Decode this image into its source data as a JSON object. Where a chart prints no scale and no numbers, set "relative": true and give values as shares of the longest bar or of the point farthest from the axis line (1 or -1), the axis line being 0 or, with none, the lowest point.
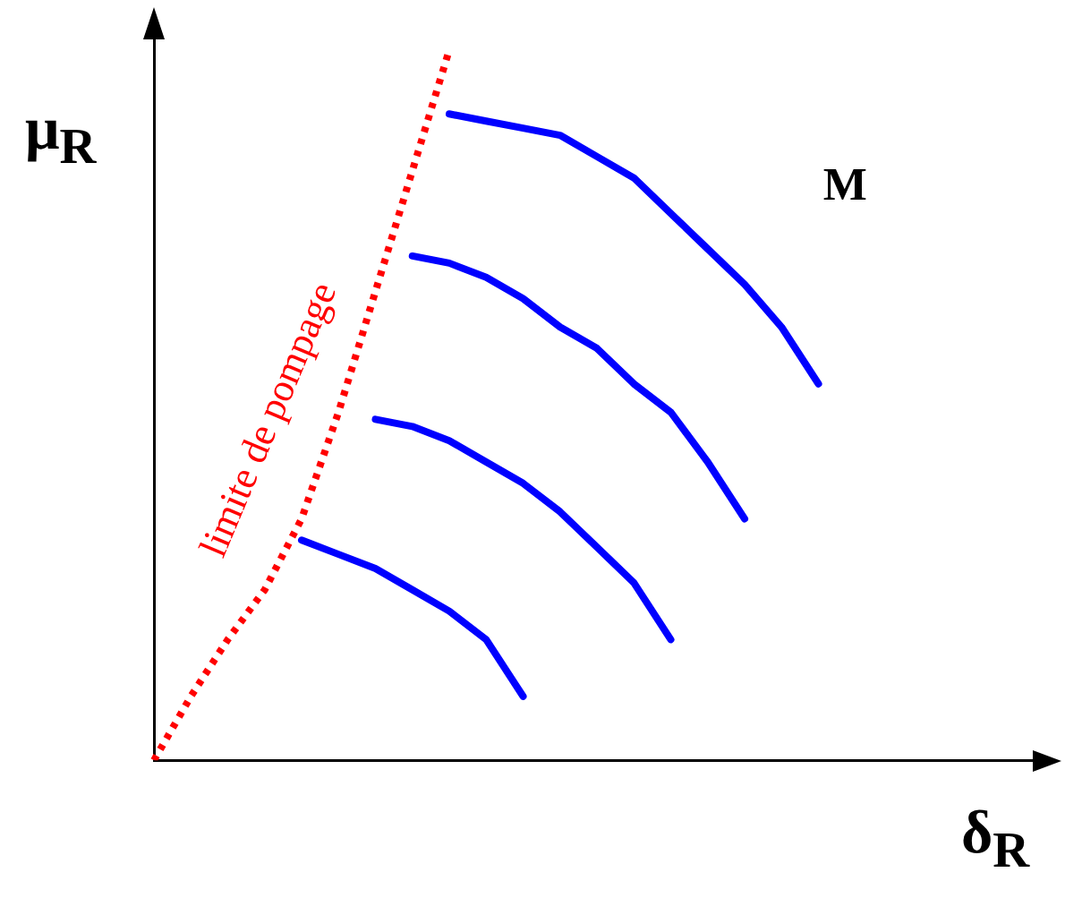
{
  "chart_data": {
    "type": "line",
    "relative": true,
    "xlabel": "δ$_{R}$",
    "ylabel": "μ$_{R}$",
    "annotations": [
      "M"
    ],
    "legend": false,
    "grid": false,
    "marker": "none",
    "categories": [
      null,
      null,
      null,
      null,
      null,
      null,
      null,
      null,
      null,
      null,
      null,
      null,
      null,
      null,
      null,
      null,
      null,
      null,
      null,
      null,
      null,
      null,
      null,
      null,
      null
    ],
    "series": [
      {
        "name": "limite de pompage",
        "color": "#ff0000",
        "line_style": "dotted",
        "values": [
          0,
          0.09,
          0.17,
          0.24,
          0.34,
          0.49,
          0.66,
          0.83,
          1,
          null,
          null,
          null,
          null,
          null,
          null,
          null,
          null,
          null,
          null,
          null,
          null,
          null,
          null,
          null,
          null
        ]
      },
      {
        "color": "#0000ff",
        "line_style": "solid",
        "values": [
          null,
          null,
          null,
          null,
          null,
          null,
          null,
          null,
          0.91,
          0.9,
          0.89,
          0.88,
          0.85,
          0.82,
          0.77,
          0.72,
          0.67,
          0.61,
          0.53,
          null,
          null,
          null,
          null,
          null,
          null
        ]
      },
      {
        "color": "#0000ff",
        "line_style": "solid",
        "values": [
          null,
          null,
          null,
          null,
          null,
          null,
          null,
          0.71,
          0.7,
          0.68,
          0.65,
          0.61,
          0.58,
          0.53,
          0.49,
          0.42,
          0.34,
          null,
          null,
          null,
          null,
          null,
          null,
          null,
          null
        ]
      },
      {
        "color": "#0000ff",
        "line_style": "solid",
        "values": [
          null,
          null,
          null,
          null,
          null,
          null,
          0.48,
          0.47,
          0.45,
          0.42,
          0.39,
          0.35,
          0.3,
          0.25,
          0.17,
          null,
          null,
          null,
          null,
          null,
          null,
          null,
          null,
          null,
          null
        ]
      },
      {
        "color": "#0000ff",
        "line_style": "solid",
        "values": [
          null,
          null,
          null,
          null,
          0.31,
          0.29,
          0.27,
          0.24,
          0.21,
          0.17,
          0.09,
          null,
          null,
          null,
          null,
          null,
          null,
          null,
          null,
          null,
          null,
          null,
          null,
          null,
          null
        ]
      }
    ]
  }
}
